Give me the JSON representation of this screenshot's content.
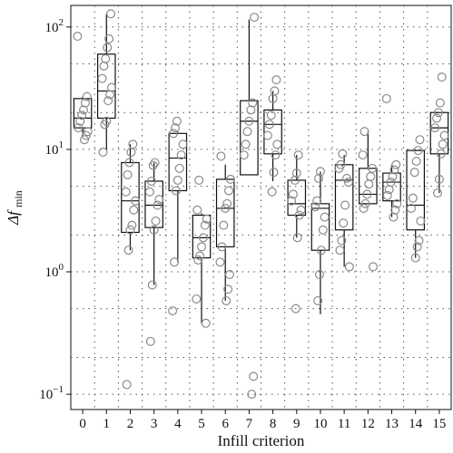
{
  "chart_data": {
    "type": "box",
    "xlabel": "Infill criterion",
    "ylabel_main": "Δf",
    "ylabel_sub": "min",
    "y_scale": "log10",
    "ylim": [
      0.075,
      150
    ],
    "grid": true,
    "categories": [
      "0",
      "1",
      "2",
      "3",
      "4",
      "5",
      "6",
      "7",
      "8",
      "9",
      "10",
      "11",
      "12",
      "13",
      "14",
      "15"
    ],
    "y_ticks": [
      {
        "value": 0.1,
        "base": "10",
        "exp": "−1"
      },
      {
        "value": 1,
        "base": "10",
        "exp": "0"
      },
      {
        "value": 10,
        "base": "10",
        "exp": "1"
      },
      {
        "value": 100,
        "base": "10",
        "exp": "2"
      }
    ],
    "boxes": [
      {
        "label": "0",
        "q1": 15,
        "median": 18,
        "q3": 26,
        "whisker_low": 13,
        "whisker_high": 27,
        "points": [
          84,
          27,
          24,
          21,
          19,
          17,
          15,
          14,
          13,
          12
        ]
      },
      {
        "label": "1",
        "q1": 18,
        "median": 30,
        "q3": 60,
        "whisker_low": 10,
        "whisker_high": 128,
        "points": [
          128,
          80,
          68,
          55,
          48,
          38,
          32,
          28,
          25,
          17,
          16,
          9.5
        ]
      },
      {
        "label": "2",
        "q1": 2.1,
        "median": 3.8,
        "q3": 7.8,
        "whisker_low": 1.5,
        "whisker_high": 11,
        "points": [
          11,
          9.5,
          7.8,
          6.2,
          4.5,
          3.8,
          3.2,
          2.4,
          2.2,
          1.5,
          0.12
        ]
      },
      {
        "label": "3",
        "q1": 2.3,
        "median": 3.5,
        "q3": 5.5,
        "whisker_low": 0.78,
        "whisker_high": 7.8,
        "points": [
          7.8,
          7.4,
          5.5,
          4.5,
          3.9,
          3.5,
          2.6,
          2.2,
          0.78,
          0.27
        ]
      },
      {
        "label": "4",
        "q1": 4.6,
        "median": 8.5,
        "q3": 13.5,
        "whisker_low": 1.2,
        "whisker_high": 14,
        "points": [
          17,
          15,
          13.5,
          11,
          9,
          7,
          5.6,
          4.6,
          1.2,
          0.48
        ]
      },
      {
        "label": "5",
        "q1": 1.3,
        "median": 1.9,
        "q3": 2.9,
        "whisker_low": 0.38,
        "whisker_high": 3,
        "points": [
          5.6,
          3.2,
          2.7,
          2.4,
          1.9,
          1.6,
          1.35,
          1.25,
          0.6,
          0.38
        ]
      },
      {
        "label": "6",
        "q1": 1.6,
        "median": 3.3,
        "q3": 5.7,
        "whisker_low": 0.58,
        "whisker_high": 7.5,
        "points": [
          8.8,
          5.7,
          4.6,
          3.6,
          3.3,
          2.4,
          1.6,
          1.2,
          0.95,
          0.72,
          0.58
        ]
      },
      {
        "label": "7",
        "q1": 6.2,
        "median": 17,
        "q3": 25,
        "whisker_low": 6.2,
        "whisker_high": 115,
        "points": [
          120,
          24,
          21,
          17,
          14,
          11,
          9,
          0.14,
          0.1
        ]
      },
      {
        "label": "8",
        "q1": 9.2,
        "median": 16,
        "q3": 21,
        "whisker_low": 5.5,
        "whisker_high": 30,
        "points": [
          37,
          30,
          26,
          19,
          16,
          13,
          11,
          9,
          6.5,
          4.5
        ]
      },
      {
        "label": "9",
        "q1": 2.9,
        "median": 3.6,
        "q3": 5.6,
        "whisker_low": 1.9,
        "whisker_high": 9,
        "points": [
          9,
          6.4,
          5.6,
          4.3,
          3.8,
          3.2,
          2.9,
          1.9,
          0.5
        ]
      },
      {
        "label": "10",
        "q1": 1.5,
        "median": 3.3,
        "q3": 3.6,
        "whisker_low": 0.45,
        "whisker_high": 6.6,
        "points": [
          6.6,
          5.8,
          3.8,
          3.4,
          2.8,
          2.2,
          1.5,
          0.95,
          0.58
        ]
      },
      {
        "label": "11",
        "q1": 2.2,
        "median": 5.6,
        "q3": 7.5,
        "whisker_low": 1.1,
        "whisker_high": 9,
        "points": [
          9.2,
          7.5,
          7,
          5.4,
          5.8,
          3.5,
          2.5,
          1.8,
          1.5,
          1.1
        ]
      },
      {
        "label": "12",
        "q1": 3.6,
        "median": 4.3,
        "q3": 7,
        "whisker_low": 3.6,
        "whisker_high": 14,
        "points": [
          14,
          9,
          7,
          6,
          5.2,
          4.3,
          3.6,
          3.3,
          1.1
        ]
      },
      {
        "label": "13",
        "q1": 3.8,
        "median": 5.4,
        "q3": 6.4,
        "whisker_low": 2.8,
        "whisker_high": 7.5,
        "points": [
          26,
          7.5,
          6.8,
          6,
          5.4,
          4.7,
          4.2,
          3.6,
          3.2,
          2.8
        ]
      },
      {
        "label": "14",
        "q1": 2.2,
        "median": 3.5,
        "q3": 9.8,
        "whisker_low": 1.3,
        "whisker_high": 10,
        "points": [
          12,
          9.8,
          8,
          6.5,
          4,
          3.3,
          2.6,
          1.8,
          1.6,
          1.3
        ]
      },
      {
        "label": "15",
        "q1": 9.2,
        "median": 15,
        "q3": 20,
        "whisker_low": 4.4,
        "whisker_high": 20,
        "points": [
          39,
          24,
          20,
          18,
          15,
          13,
          11,
          9.2,
          5.7,
          4.4
        ]
      }
    ]
  }
}
